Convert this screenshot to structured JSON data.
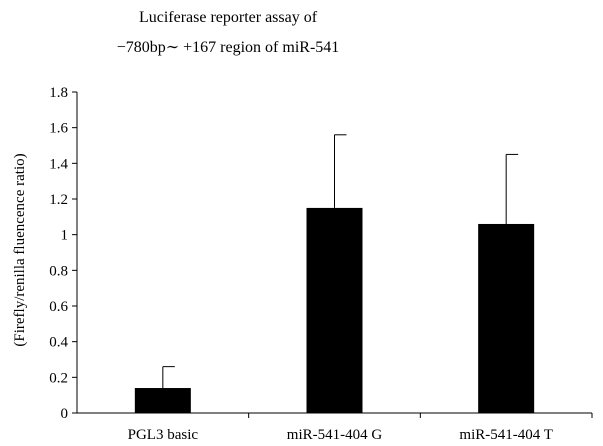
{
  "chart_data": {
    "type": "bar",
    "title_lines": [
      "Luciferase reporter assay of",
      "−780bp∼ +167 region of miR-541"
    ],
    "ylabel": "(Firefly/renilla fluencence ratio)",
    "xlabel": "",
    "categories": [
      "PGL3 basic",
      "miR-541-404 G",
      "miR-541-404 T"
    ],
    "values": [
      0.14,
      1.15,
      1.06
    ],
    "errors": [
      0.12,
      0.41,
      0.39
    ],
    "ylim": [
      0,
      1.8
    ],
    "yticks": [
      0,
      0.2,
      0.4,
      0.6,
      0.8,
      1,
      1.2,
      1.4,
      1.6,
      1.8
    ],
    "ytick_labels": [
      "0",
      "0.2",
      "0.4",
      "0.6",
      "0.8",
      "1",
      "1.2",
      "1.4",
      "1.6",
      "1.8"
    ],
    "grid": false,
    "legend": "none",
    "bar_color": "#000000"
  }
}
